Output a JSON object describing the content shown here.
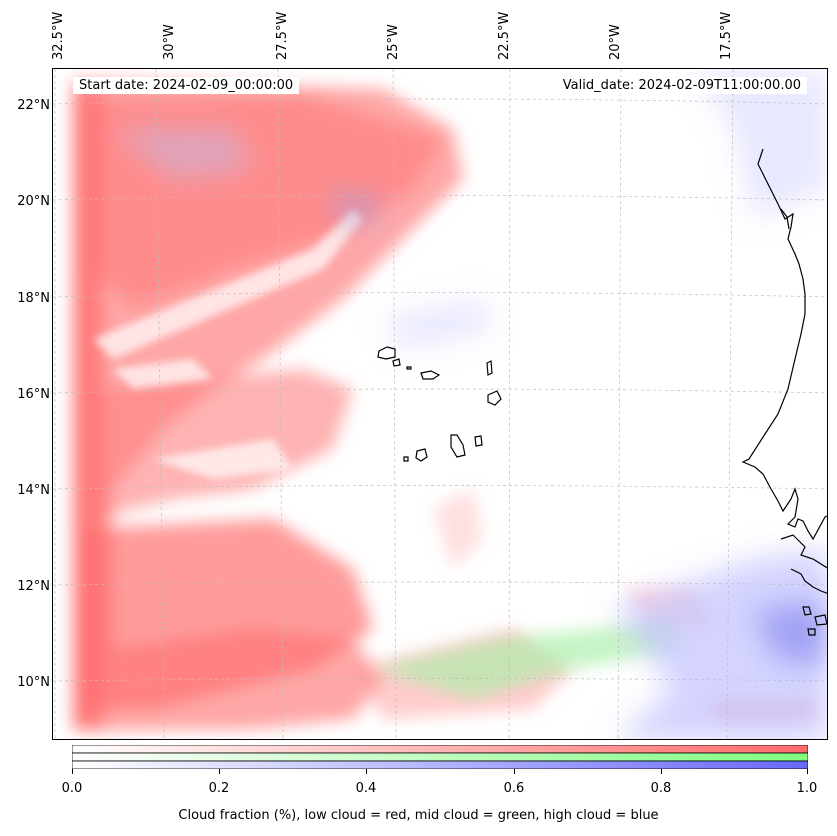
{
  "map": {
    "start_date": "Start date: 2024-02-09_00:00:00",
    "valid_date": "Valid_date: 2024-02-09T11:00:00.00",
    "lon_labels": [
      "32.5°W",
      "30°W",
      "27.5°W",
      "25°W",
      "22.5°W",
      "20°W",
      "17.5°W"
    ],
    "lat_labels": [
      "22°N",
      "20°N",
      "18°N",
      "16°N",
      "14°N",
      "12°N",
      "10°N"
    ],
    "low_cloud_color": "#ff6b6b",
    "mid_cloud_color": "#8fff8f",
    "high_cloud_color": "#7070ff"
  },
  "colorbar": {
    "ticks": [
      "0.0",
      "0.2",
      "0.4",
      "0.6",
      "0.8",
      "1.0"
    ],
    "label": "Cloud fraction (%), low cloud = red, mid cloud = green, high cloud = blue"
  }
}
